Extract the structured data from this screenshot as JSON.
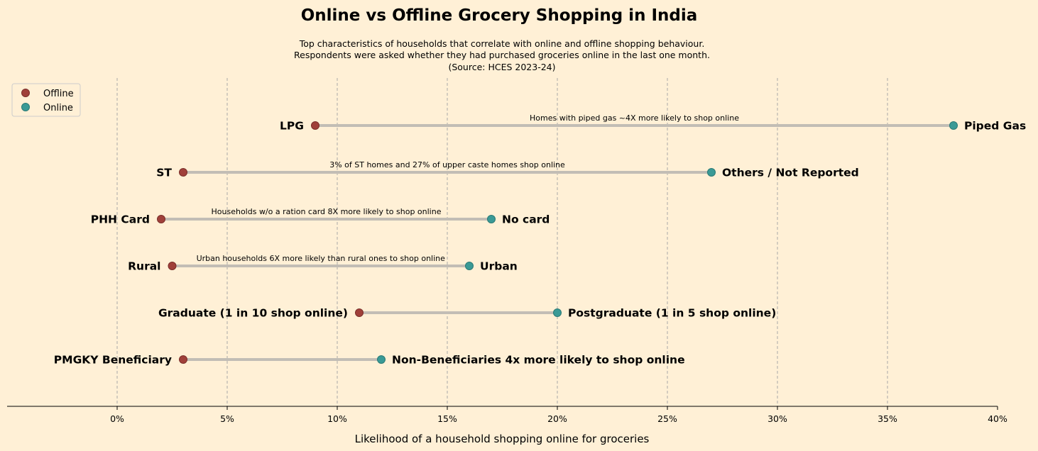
{
  "chart_data": {
    "type": "dumbbell",
    "title": "Online vs Offline Grocery Shopping in India",
    "subtitle": [
      "Top characteristics of households that correlate with online and offline shopping behaviour.",
      "Respondents were asked whether they had purchased groceries online in the last one month.",
      "(Source: HCES 2023-24)"
    ],
    "xlabel": "Likelihood of a household shopping online for groceries",
    "xlim": [
      -5,
      40
    ],
    "xticks": [
      0,
      5,
      10,
      15,
      20,
      25,
      30,
      35,
      40
    ],
    "xtick_labels": [
      "0%",
      "5%",
      "10%",
      "15%",
      "20%",
      "25%",
      "30%",
      "35%",
      "40%"
    ],
    "grid": "vertical dashed",
    "legend": {
      "placement": "top-left",
      "entries": [
        {
          "name": "Offline",
          "color": "#A0403A"
        },
        {
          "name": "Online",
          "color": "#3A9A96"
        }
      ]
    },
    "rows": [
      {
        "offline_label": "LPG",
        "offline": 9,
        "online_label": "Piped Gas",
        "online": 38,
        "annotation": "Homes with piped gas ~4X more likely to shop online"
      },
      {
        "offline_label": "ST",
        "offline": 3,
        "online_label": "Others / Not Reported",
        "online": 27,
        "annotation": "3% of ST homes and 27% of upper caste homes shop online"
      },
      {
        "offline_label": "PHH Card",
        "offline": 2,
        "online_label": "No card",
        "online": 17,
        "annotation": "Households w/o a ration card 8X more likely to shop online"
      },
      {
        "offline_label": "Rural",
        "offline": 2.5,
        "online_label": "Urban",
        "online": 16,
        "annotation": "Urban households 6X more likely than rural ones to shop online"
      },
      {
        "offline_label": "Graduate (1 in 10 shop online)",
        "offline": 11,
        "online_label": "Postgraduate (1 in 5 shop online)",
        "online": 20,
        "annotation": ""
      },
      {
        "offline_label": "PMGKY Beneficiary",
        "offline": 3,
        "online_label": "Non-Beneficiaries 4x more likely to shop online",
        "online": 12,
        "annotation": ""
      }
    ],
    "colors": {
      "offline": "#A0403A",
      "online": "#3A9A96",
      "connector": "#C2BDB5",
      "grid": "#A8A8A8",
      "background": "#FFF0D6"
    }
  }
}
